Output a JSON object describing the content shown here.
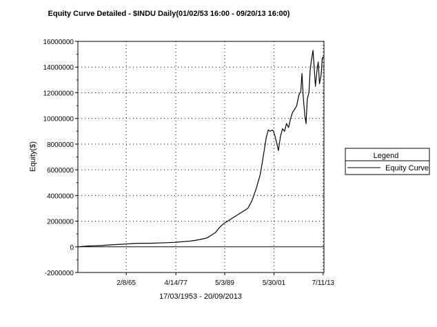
{
  "chart_data": {
    "type": "line",
    "title": "Equity Curve Detailed - $INDU Daily(01/02/53 16:00 - 09/20/13 16:00)",
    "xlabel": "17/03/1953 - 20/09/2013",
    "ylabel": "Equity($)",
    "ylim": [
      -2000000,
      16000000
    ],
    "yticks": [
      16000000,
      14000000,
      12000000,
      10000000,
      8000000,
      6000000,
      4000000,
      2000000,
      0,
      -2000000
    ],
    "ytick_labels": [
      "16000000",
      "14000000",
      "12000000",
      "10000000",
      "8000000",
      "6000000",
      "4000000",
      "2000000",
      "0",
      "-2000000"
    ],
    "xlim": [
      1953.2,
      2013.7
    ],
    "xticks": [
      1965.1,
      1977.3,
      1989.3,
      2001.4,
      2013.5
    ],
    "xtick_labels": [
      "2/8/65",
      "4/14/77",
      "5/3/89",
      "5/30/01",
      "7/11/13"
    ],
    "grid": true,
    "legend": {
      "title": "Legend",
      "position": "right"
    },
    "series": [
      {
        "name": "Equity Curve",
        "x": [
          1953.2,
          1955,
          1957,
          1959,
          1961,
          1963,
          1965,
          1967,
          1969,
          1971,
          1973,
          1975,
          1977,
          1979,
          1981,
          1983,
          1985,
          1987,
          1988,
          1989,
          1990,
          1991,
          1992,
          1993,
          1994,
          1995,
          1996,
          1997,
          1998,
          1998.5,
          1999,
          1999.5,
          2000,
          2000.5,
          2001,
          2001.3,
          2001.6,
          2002,
          2002.5,
          2003,
          2003.5,
          2004,
          2004.5,
          2005,
          2005.5,
          2006,
          2006.5,
          2007,
          2007.5,
          2008,
          2008.3,
          2008.6,
          2009,
          2009.3,
          2009.6,
          2010,
          2010.3,
          2010.6,
          2011,
          2011.3,
          2011.6,
          2012,
          2012.3,
          2012.6,
          2013,
          2013.3,
          2013.6
        ],
        "y": [
          0,
          50000,
          80000,
          100000,
          150000,
          180000,
          220000,
          260000,
          280000,
          280000,
          300000,
          320000,
          350000,
          400000,
          450000,
          550000,
          700000,
          1100000,
          1500000,
          1800000,
          2000000,
          2200000,
          2400000,
          2600000,
          2800000,
          3000000,
          3600000,
          4500000,
          5600000,
          6500000,
          7500000,
          8500000,
          9100000,
          9000000,
          9100000,
          9000000,
          8700000,
          8200000,
          7500000,
          8600000,
          9200000,
          9000000,
          9600000,
          9300000,
          10000000,
          10500000,
          10700000,
          11000000,
          11800000,
          12100000,
          13500000,
          11700000,
          10200000,
          9600000,
          11500000,
          12000000,
          13700000,
          14500000,
          15300000,
          14000000,
          12500000,
          13800000,
          14400000,
          12700000,
          13400000,
          14700000,
          14800000
        ]
      }
    ]
  }
}
